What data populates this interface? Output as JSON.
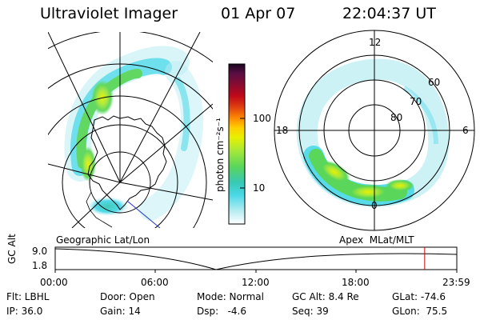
{
  "header": {
    "instrument": "Ultraviolet Imager",
    "date": "01 Apr 07",
    "time": "22:04:37 UT"
  },
  "colorbar": {
    "unit_label": "photon cm⁻²s⁻¹",
    "ticks": [
      "100",
      "10"
    ],
    "colors": [
      "#000000",
      "#2a0a3a",
      "#5a0e45",
      "#8a0b2f",
      "#c0081a",
      "#e04010",
      "#ff8c00",
      "#ffd000",
      "#e8f000",
      "#a8e838",
      "#5ad65a",
      "#38c8b4",
      "#4ad8e8",
      "#b8ecf2",
      "#ffffff"
    ]
  },
  "left_panel": {
    "label": "Geographic Lat/Lon"
  },
  "right_panel": {
    "label": "Apex  MLat/MLT",
    "mlt_labels": {
      "top": "12",
      "left": "18",
      "right": "6",
      "bottom": "0"
    },
    "lat_labels": [
      "60",
      "70",
      "80"
    ]
  },
  "timeline": {
    "axis_label": "GC Alt",
    "y_ticks": [
      "9.0",
      "1.8"
    ],
    "x_ticks": [
      "00:00",
      "06:00",
      "12:00",
      "18:00",
      "23:59"
    ],
    "current_marker_hours": 22.08,
    "marker_color": "#cc0000"
  },
  "footer": {
    "row1": {
      "filter": "Flt: LBHL",
      "door": "Door: Open",
      "mode": "Mode: Normal",
      "gc_alt": "GC Alt: 8.4 Re",
      "glat": "GLat: -74.6"
    },
    "row2": {
      "ip": "IP: 36.0",
      "gain": "Gain: 14",
      "dsp": "Dsp:   -4.6",
      "seq": "Seq: 39",
      "glon": "GLon:  75.5"
    }
  }
}
